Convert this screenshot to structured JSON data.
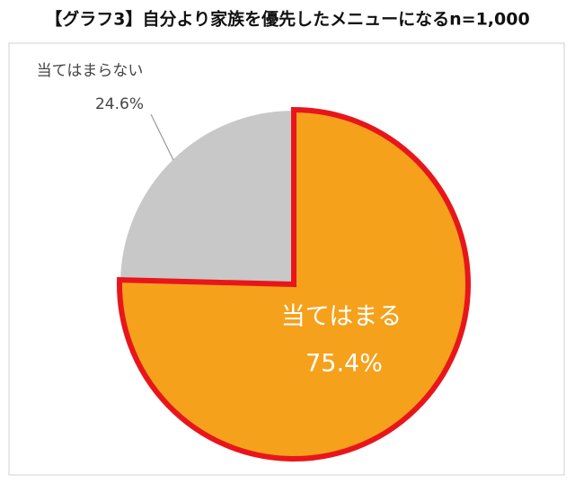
{
  "chart_data": {
    "type": "pie",
    "title": "【グラフ3】自分より家族を優先したメニューになるn=1,000",
    "categories": [
      "当てはまる",
      "当てはまらない"
    ],
    "values": [
      75.4,
      24.6
    ],
    "value_labels": [
      "75.4%",
      "24.6%"
    ],
    "colors": [
      "#f5a11c",
      "#c8c8c8"
    ],
    "highlight_color": "#e8161b"
  }
}
